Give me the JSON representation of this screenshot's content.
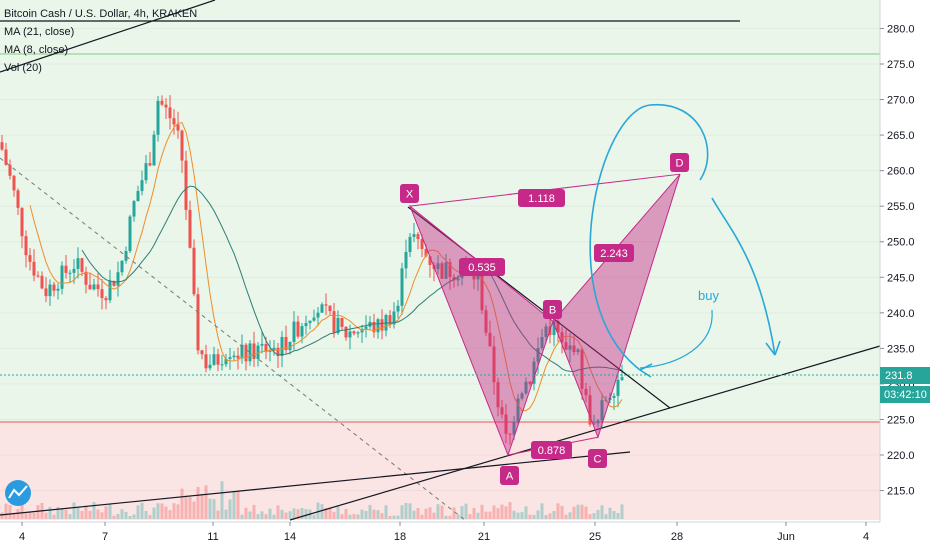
{
  "legend": {
    "title": "Bitcoin Cash / U.S. Dollar, 4h, KRAKEN",
    "ma21": "MA (21, close)",
    "ma8": "MA (8, close)",
    "vol": "Vol (20)"
  },
  "chart_data": {
    "type": "candlestick",
    "ylim": [
      211,
      284
    ],
    "y_ticks": [
      215,
      220,
      225,
      230,
      235,
      240,
      245,
      250,
      255,
      260,
      265,
      270,
      275,
      280
    ],
    "x_tick_labels": [
      "4",
      "7",
      "11",
      "14",
      "18",
      "21",
      "25",
      "28",
      "Jun",
      "4"
    ],
    "last_price": "231.8",
    "countdown": "03:42:10",
    "harmonic_pattern": {
      "points": [
        {
          "label": "X",
          "value": 255
        },
        {
          "label": "A",
          "value": 220
        },
        {
          "label": "B",
          "value": 238.8
        },
        {
          "label": "C",
          "value": 222.5
        },
        {
          "label": "D",
          "value": 259.5
        }
      ],
      "ratios": [
        "1.118",
        "0.535",
        "2.243",
        "0.878"
      ]
    },
    "annotation": "buy",
    "zones": {
      "green_top": 277,
      "red_top": 225
    },
    "colors": {
      "up": "#26a69a",
      "down": "#ef5350",
      "pattern": "#c62a88",
      "annotation": "#2aa7d6"
    }
  }
}
